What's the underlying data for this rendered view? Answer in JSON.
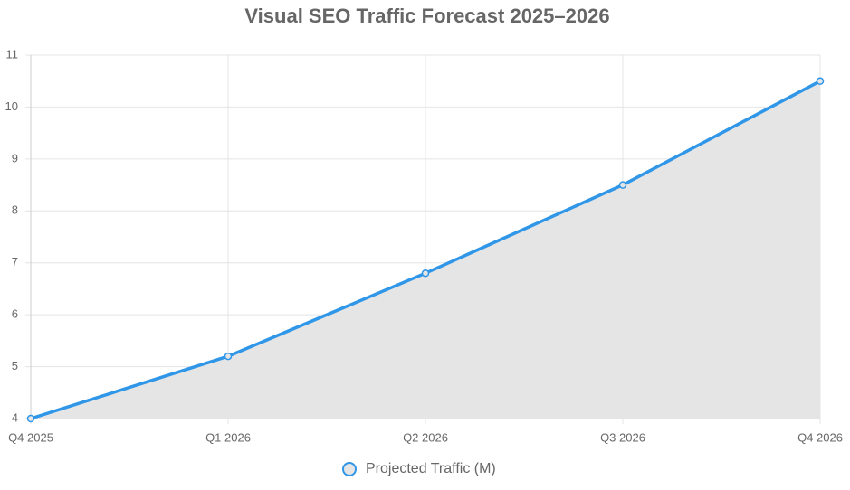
{
  "chart_data": {
    "type": "line",
    "title": "Visual SEO Traffic Forecast 2025–2026",
    "categories": [
      "Q4 2025",
      "Q1 2026",
      "Q2 2026",
      "Q3 2026",
      "Q4 2026"
    ],
    "series": [
      {
        "name": "Projected Traffic (M)",
        "color": "#2f96e8",
        "fill_color": "#e5e5e5",
        "values": [
          4,
          5.2,
          6.8,
          8.5,
          10.5
        ]
      }
    ],
    "fill": true,
    "ylim": [
      4,
      11
    ],
    "yticks": [
      4,
      5,
      6,
      7,
      8,
      9,
      10,
      11
    ],
    "grid": true,
    "legend": "bottom"
  }
}
